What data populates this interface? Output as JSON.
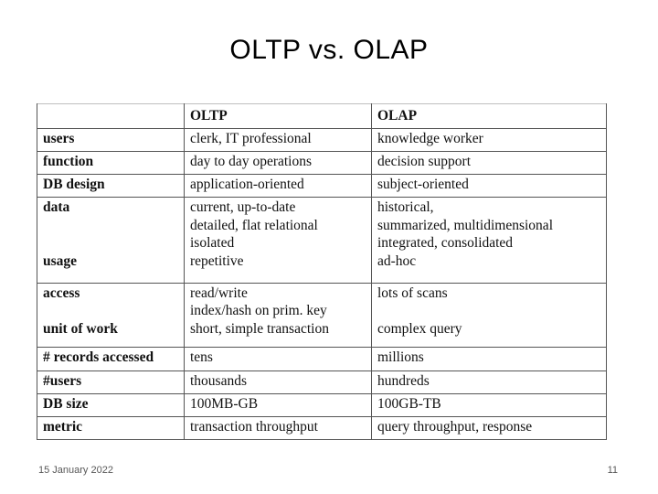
{
  "slide": {
    "title": "OLTP vs. OLAP",
    "footer_date": "15 January 2022",
    "page_number": "11"
  },
  "table": {
    "headers": [
      "",
      "OLTP",
      "OLAP"
    ],
    "rows": [
      {
        "labels": [
          "users"
        ],
        "oltp": [
          "clerk, IT professional"
        ],
        "olap": [
          "knowledge worker"
        ]
      },
      {
        "labels": [
          "function"
        ],
        "oltp": [
          "day to day operations"
        ],
        "olap": [
          "decision support"
        ]
      },
      {
        "labels": [
          "DB design"
        ],
        "oltp": [
          "application-oriented"
        ],
        "olap": [
          "subject-oriented"
        ]
      },
      {
        "labels": [
          "data",
          "",
          "",
          "usage"
        ],
        "oltp": [
          "current, up-to-date",
          "detailed, flat relational",
          "isolated",
          "repetitive"
        ],
        "olap": [
          "historical,",
          "summarized, multidimensional",
          "integrated, consolidated",
          "ad-hoc"
        ]
      },
      {
        "labels": [
          "access",
          "",
          "unit of work"
        ],
        "oltp": [
          "read/write",
          "index/hash on prim. key",
          "short, simple transaction"
        ],
        "olap": [
          "lots of scans",
          "",
          "complex query"
        ]
      },
      {
        "labels": [
          "# records accessed"
        ],
        "oltp": [
          "tens"
        ],
        "olap": [
          "millions"
        ]
      },
      {
        "labels": [
          "#users"
        ],
        "oltp": [
          "thousands"
        ],
        "olap": [
          "hundreds"
        ]
      },
      {
        "labels": [
          "DB size"
        ],
        "oltp": [
          "100MB-GB"
        ],
        "olap": [
          "100GB-TB"
        ]
      },
      {
        "labels": [
          "metric"
        ],
        "oltp": [
          "transaction throughput"
        ],
        "olap": [
          "query throughput, response"
        ]
      }
    ]
  }
}
